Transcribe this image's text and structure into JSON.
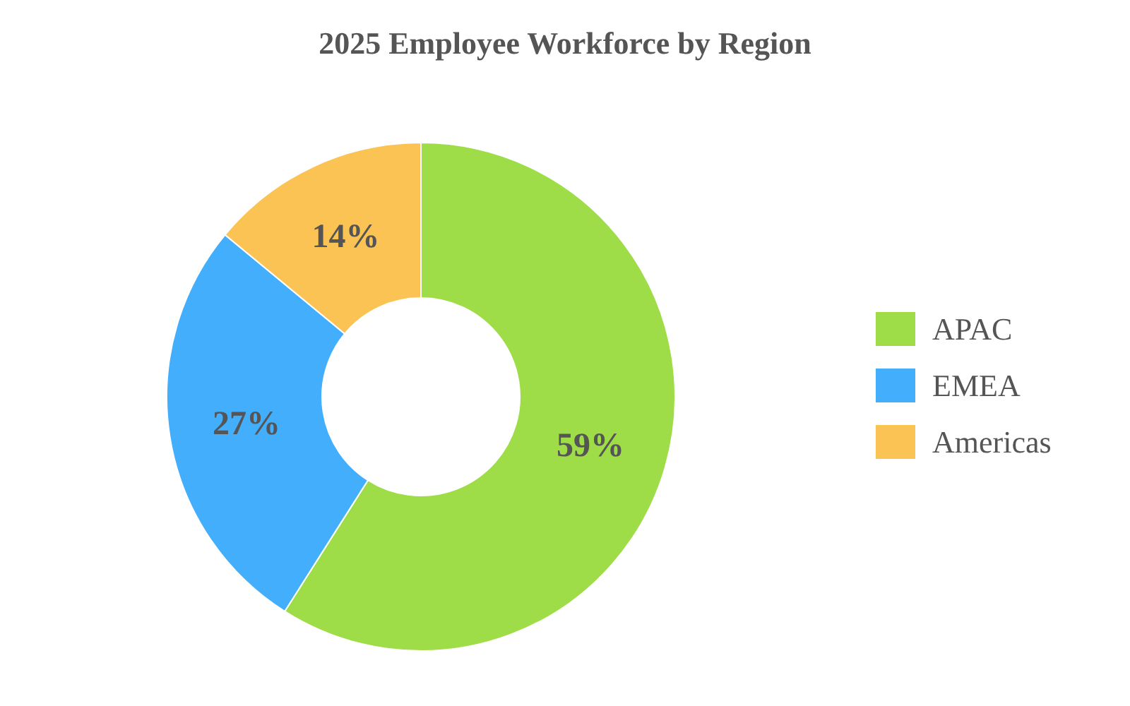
{
  "chart_data": {
    "type": "donut",
    "title": "2025 Employee Workforce by Region",
    "categories": [
      "APAC",
      "EMEA",
      "Americas"
    ],
    "values": [
      59,
      27,
      14
    ],
    "colors": [
      "#9edc48",
      "#42aefc",
      "#fbc353"
    ],
    "value_labels": [
      "59%",
      "27%",
      "14%"
    ],
    "legend": "right"
  }
}
